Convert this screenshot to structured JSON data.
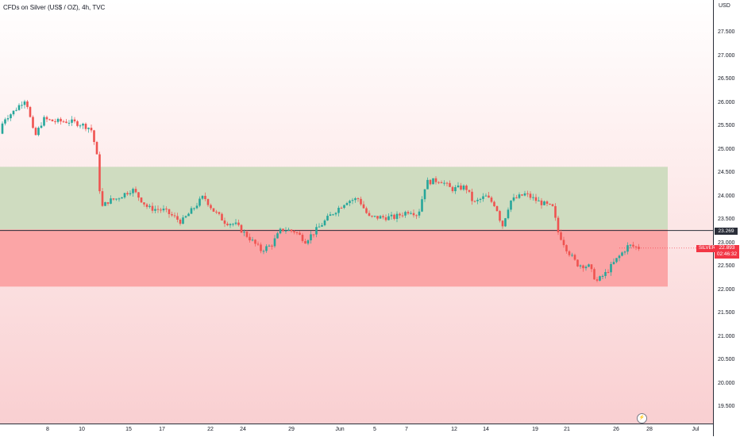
{
  "header": {
    "title": "CFDs on Silver (US$ / OZ), 4h, TVC",
    "currency": "USD"
  },
  "price_badge": {
    "symbol": "SILVER",
    "price": "22.893",
    "countdown": "02:46:32",
    "reference_price": "23.269"
  },
  "chart_data": {
    "type": "candlestick",
    "title": "CFDs on Silver (US$ / OZ), 4h, TVC",
    "y_axis": {
      "ticks": [
        "27.500",
        "27.000",
        "26.500",
        "26.000",
        "25.500",
        "25.000",
        "24.500",
        "24.000",
        "23.500",
        "23.000",
        "22.500",
        "22.000",
        "21.500",
        "21.000",
        "20.500",
        "20.000",
        "19.500"
      ],
      "range": [
        19.3,
        28.0
      ],
      "unit": "USD"
    },
    "x_axis": {
      "ticks": [
        "8",
        "10",
        "15",
        "17",
        "22",
        "24",
        "29",
        "Jun",
        "5",
        "7",
        "12",
        "14",
        "19",
        "21",
        "26",
        "28",
        "Jul"
      ]
    },
    "zones": [
      {
        "name": "green-zone",
        "from": 23.29,
        "to": 24.63,
        "color": "#cfdcc0"
      },
      {
        "name": "red-zone",
        "from": 22.07,
        "to": 23.29,
        "color": "#fba5a6"
      }
    ],
    "reference_line": 23.269,
    "last_price": 22.893,
    "colors": {
      "up": "#26a69a",
      "down": "#ef5350",
      "green_zone": "#cfdcc0",
      "red_zone": "#fba5a6"
    },
    "anchors": [
      [
        0,
        25.15
      ],
      [
        8,
        25.65
      ],
      [
        20,
        25.8
      ],
      [
        36,
        26.1
      ],
      [
        47,
        25.25
      ],
      [
        58,
        25.65
      ],
      [
        72,
        25.6
      ],
      [
        90,
        25.6
      ],
      [
        104,
        25.55
      ],
      [
        118,
        25.45
      ],
      [
        125,
        24.95
      ],
      [
        131,
        23.75
      ],
      [
        140,
        23.9
      ],
      [
        150,
        23.95
      ],
      [
        170,
        24.15
      ],
      [
        190,
        23.75
      ],
      [
        210,
        23.7
      ],
      [
        232,
        23.45
      ],
      [
        245,
        23.7
      ],
      [
        260,
        24.0
      ],
      [
        272,
        23.7
      ],
      [
        287,
        23.45
      ],
      [
        300,
        23.4
      ],
      [
        318,
        23.1
      ],
      [
        332,
        22.85
      ],
      [
        345,
        22.95
      ],
      [
        358,
        23.3
      ],
      [
        375,
        23.25
      ],
      [
        388,
        23.05
      ],
      [
        403,
        23.3
      ],
      [
        420,
        23.6
      ],
      [
        440,
        23.9
      ],
      [
        455,
        23.95
      ],
      [
        468,
        23.55
      ],
      [
        485,
        23.55
      ],
      [
        500,
        23.55
      ],
      [
        520,
        23.7
      ],
      [
        530,
        23.6
      ],
      [
        540,
        24.3
      ],
      [
        558,
        24.35
      ],
      [
        572,
        24.15
      ],
      [
        590,
        24.2
      ],
      [
        600,
        23.85
      ],
      [
        615,
        24.0
      ],
      [
        628,
        23.8
      ],
      [
        636,
        23.35
      ],
      [
        646,
        23.9
      ],
      [
        665,
        24.05
      ],
      [
        680,
        23.9
      ],
      [
        700,
        23.75
      ],
      [
        706,
        23.25
      ],
      [
        718,
        22.85
      ],
      [
        730,
        22.55
      ],
      [
        745,
        22.5
      ],
      [
        755,
        22.18
      ],
      [
        766,
        22.35
      ],
      [
        780,
        22.65
      ],
      [
        795,
        22.95
      ],
      [
        808,
        22.9
      ]
    ]
  }
}
